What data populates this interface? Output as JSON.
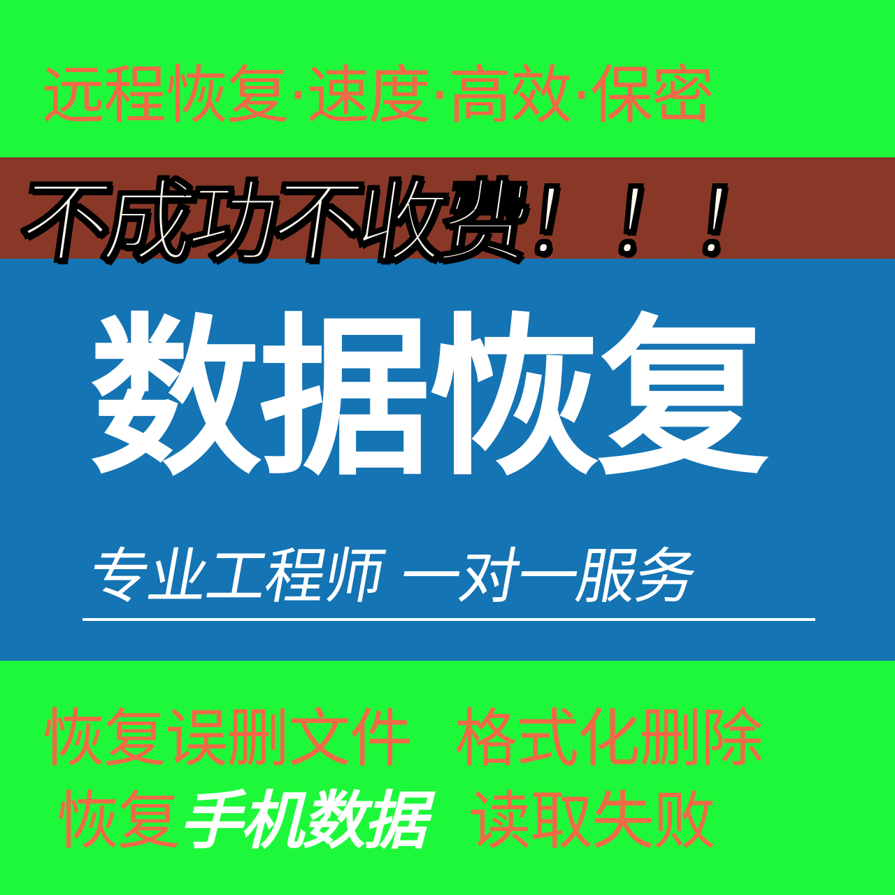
{
  "colors": {
    "green": "#1ef83a",
    "brown": "#893828",
    "blue": "#1474b4",
    "orange": "#ef6a47",
    "white": "#ffffff",
    "cream": "#fcf6ee",
    "black": "#000000"
  },
  "top_tagline": "远程恢复·速度·高效·保密",
  "headline": "不成功不收费！！！",
  "main_title": "数据恢复",
  "subtitle": "专业工程师 一对一服务",
  "services": {
    "row1_left": "恢复误删文件",
    "row1_right": "格式化删除",
    "row2_prefix": "恢复",
    "row2_highlight": "手机数据",
    "row2_right": "读取失败"
  }
}
